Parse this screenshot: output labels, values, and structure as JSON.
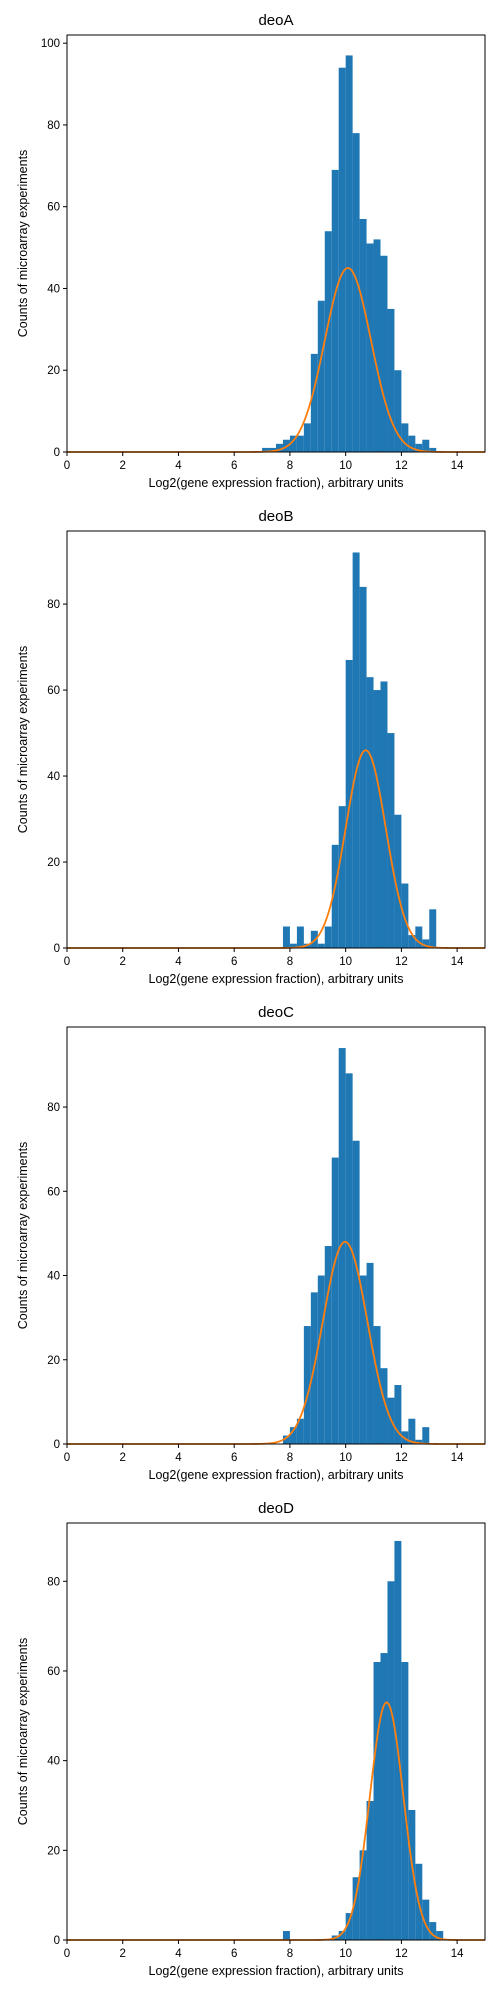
{
  "chart_data": [
    {
      "type": "bar",
      "title": "deoA",
      "xlabel": "Log2(gene expression fraction), arbitrary units",
      "ylabel": "Counts of microarray experiments",
      "xlim": [
        0,
        15
      ],
      "ylim": [
        0,
        102
      ],
      "xticks": [
        0,
        2,
        4,
        6,
        8,
        10,
        12,
        14
      ],
      "yticks": [
        0,
        20,
        40,
        60,
        80,
        100
      ],
      "bin_width": 0.25,
      "bars": [
        {
          "x": 7.0,
          "value": 1
        },
        {
          "x": 7.25,
          "value": 1
        },
        {
          "x": 7.5,
          "value": 2
        },
        {
          "x": 7.75,
          "value": 3
        },
        {
          "x": 8.0,
          "value": 4
        },
        {
          "x": 8.25,
          "value": 4
        },
        {
          "x": 8.5,
          "value": 7
        },
        {
          "x": 8.75,
          "value": 24
        },
        {
          "x": 9.0,
          "value": 37
        },
        {
          "x": 9.25,
          "value": 54
        },
        {
          "x": 9.5,
          "value": 69
        },
        {
          "x": 9.75,
          "value": 94
        },
        {
          "x": 10.0,
          "value": 97
        },
        {
          "x": 10.25,
          "value": 78
        },
        {
          "x": 10.5,
          "value": 57
        },
        {
          "x": 10.75,
          "value": 51
        },
        {
          "x": 11.0,
          "value": 52
        },
        {
          "x": 11.25,
          "value": 48
        },
        {
          "x": 11.5,
          "value": 35
        },
        {
          "x": 11.75,
          "value": 20
        },
        {
          "x": 12.0,
          "value": 7
        },
        {
          "x": 12.25,
          "value": 4
        },
        {
          "x": 12.5,
          "value": 2
        },
        {
          "x": 12.75,
          "value": 3
        },
        {
          "x": 13.0,
          "value": 1
        }
      ],
      "fit": {
        "type": "normal",
        "peak": 45,
        "mean": 10.08,
        "sd": 0.83
      }
    },
    {
      "type": "bar",
      "title": "deoB",
      "xlabel": "Log2(gene expression fraction), arbitrary units",
      "ylabel": "Counts of microarray experiments",
      "xlim": [
        0,
        15
      ],
      "ylim": [
        0,
        97
      ],
      "xticks": [
        0,
        2,
        4,
        6,
        8,
        10,
        12,
        14
      ],
      "yticks": [
        0,
        20,
        40,
        60,
        80
      ],
      "bin_width": 0.25,
      "bars": [
        {
          "x": 7.75,
          "value": 5
        },
        {
          "x": 8.0,
          "value": 1
        },
        {
          "x": 8.25,
          "value": 5
        },
        {
          "x": 8.5,
          "value": 1
        },
        {
          "x": 8.75,
          "value": 4
        },
        {
          "x": 9.0,
          "value": 1
        },
        {
          "x": 9.25,
          "value": 5
        },
        {
          "x": 9.5,
          "value": 24
        },
        {
          "x": 9.75,
          "value": 33
        },
        {
          "x": 10.0,
          "value": 67
        },
        {
          "x": 10.25,
          "value": 92
        },
        {
          "x": 10.5,
          "value": 84
        },
        {
          "x": 10.75,
          "value": 63
        },
        {
          "x": 11.0,
          "value": 60
        },
        {
          "x": 11.25,
          "value": 62
        },
        {
          "x": 11.5,
          "value": 50
        },
        {
          "x": 11.75,
          "value": 31
        },
        {
          "x": 12.0,
          "value": 15
        },
        {
          "x": 12.25,
          "value": 3
        },
        {
          "x": 12.5,
          "value": 5
        },
        {
          "x": 12.75,
          "value": 2
        },
        {
          "x": 13.0,
          "value": 9
        }
      ],
      "fit": {
        "type": "normal",
        "peak": 46,
        "mean": 10.72,
        "sd": 0.72
      }
    },
    {
      "type": "bar",
      "title": "deoC",
      "xlabel": "Log2(gene expression fraction), arbitrary units",
      "ylabel": "Counts of microarray experiments",
      "xlim": [
        0,
        15
      ],
      "ylim": [
        0,
        99
      ],
      "xticks": [
        0,
        2,
        4,
        6,
        8,
        10,
        12,
        14
      ],
      "yticks": [
        0,
        20,
        40,
        60,
        80
      ],
      "bin_width": 0.25,
      "bars": [
        {
          "x": 7.75,
          "value": 2
        },
        {
          "x": 8.0,
          "value": 4
        },
        {
          "x": 8.25,
          "value": 6
        },
        {
          "x": 8.5,
          "value": 28
        },
        {
          "x": 8.75,
          "value": 36
        },
        {
          "x": 9.0,
          "value": 40
        },
        {
          "x": 9.25,
          "value": 47
        },
        {
          "x": 9.5,
          "value": 68
        },
        {
          "x": 9.75,
          "value": 94
        },
        {
          "x": 10.0,
          "value": 88
        },
        {
          "x": 10.25,
          "value": 72
        },
        {
          "x": 10.5,
          "value": 40
        },
        {
          "x": 10.75,
          "value": 43
        },
        {
          "x": 11.0,
          "value": 28
        },
        {
          "x": 11.25,
          "value": 18
        },
        {
          "x": 11.5,
          "value": 11
        },
        {
          "x": 11.75,
          "value": 14
        },
        {
          "x": 12.0,
          "value": 3
        },
        {
          "x": 12.25,
          "value": 6
        },
        {
          "x": 12.5,
          "value": 1
        },
        {
          "x": 12.75,
          "value": 4
        }
      ],
      "fit": {
        "type": "normal",
        "peak": 48,
        "mean": 9.98,
        "sd": 0.8
      }
    },
    {
      "type": "bar",
      "title": "deoD",
      "xlabel": "Log2(gene expression fraction), arbitrary units",
      "ylabel": "Counts of microarray experiments",
      "xlim": [
        0,
        15
      ],
      "ylim": [
        0,
        93
      ],
      "xticks": [
        0,
        2,
        4,
        6,
        8,
        10,
        12,
        14
      ],
      "yticks": [
        0,
        20,
        40,
        60,
        80
      ],
      "bin_width": 0.25,
      "bars": [
        {
          "x": 7.75,
          "value": 2
        },
        {
          "x": 9.5,
          "value": 1
        },
        {
          "x": 9.75,
          "value": 2
        },
        {
          "x": 10.0,
          "value": 6
        },
        {
          "x": 10.25,
          "value": 14
        },
        {
          "x": 10.5,
          "value": 20
        },
        {
          "x": 10.75,
          "value": 31
        },
        {
          "x": 11.0,
          "value": 62
        },
        {
          "x": 11.25,
          "value": 64
        },
        {
          "x": 11.5,
          "value": 80
        },
        {
          "x": 11.75,
          "value": 89
        },
        {
          "x": 12.0,
          "value": 62
        },
        {
          "x": 12.25,
          "value": 29
        },
        {
          "x": 12.5,
          "value": 17
        },
        {
          "x": 12.75,
          "value": 9
        },
        {
          "x": 13.0,
          "value": 4
        },
        {
          "x": 13.25,
          "value": 2
        }
      ],
      "fit": {
        "type": "normal",
        "peak": 53,
        "mean": 11.47,
        "sd": 0.6
      }
    }
  ],
  "colors": {
    "bar": "#1f77b4",
    "fit": "#ff7f0e",
    "axis": "#000000"
  }
}
